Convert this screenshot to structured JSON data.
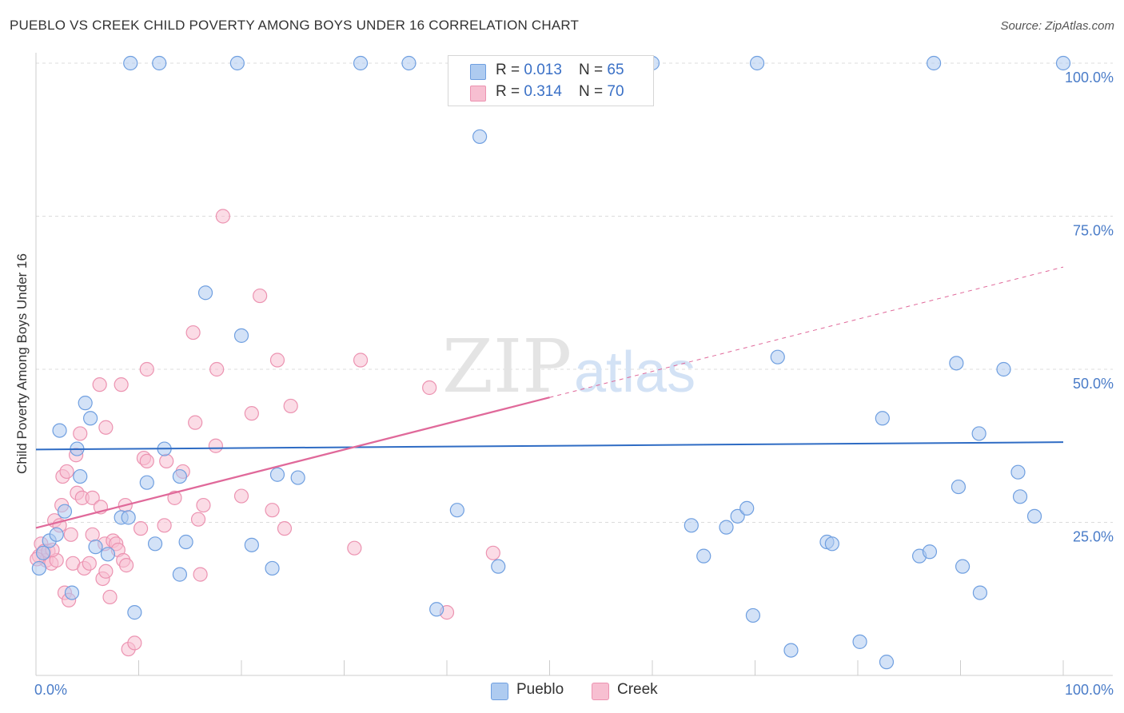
{
  "header": {
    "title": "PUEBLO VS CREEK CHILD POVERTY AMONG BOYS UNDER 16 CORRELATION CHART",
    "source": "Source: ZipAtlas.com"
  },
  "watermark": {
    "zip": "ZIP",
    "atlas": "atlas"
  },
  "legend": {
    "pueblo": {
      "r_label": "R = ",
      "r_value": "0.013",
      "n_label": "N = ",
      "n_value": "65"
    },
    "creek": {
      "r_label": "R = ",
      "r_value": "0.314",
      "n_label": "N = ",
      "n_value": "70"
    }
  },
  "bottom_legend": {
    "pueblo": "Pueblo",
    "creek": "Creek"
  },
  "colors": {
    "pueblo_fill": "#aecbf0",
    "pueblo_stroke": "#6f9fe0",
    "pueblo_line": "#2f6cc4",
    "creek_fill": "#f7bfd1",
    "creek_stroke": "#ec93b1",
    "creek_line": "#e0699a",
    "axis_label": "#4a7cc8",
    "grid": "#dcdcdc"
  },
  "chart_data": {
    "type": "scatter",
    "title": "PUEBLO VS CREEK CHILD POVERTY AMONG BOYS UNDER 16 CORRELATION CHART",
    "xlabel": "",
    "ylabel": "Child Poverty Among Boys Under 16",
    "xlim": [
      0,
      100
    ],
    "ylim": [
      0,
      100
    ],
    "x_tick_labels": [
      "0.0%",
      "100.0%"
    ],
    "y_tick_labels": [
      "25.0%",
      "50.0%",
      "75.0%",
      "100.0%"
    ],
    "y_ticks": [
      25,
      50,
      75,
      100
    ],
    "grid": "horizontal-dashed",
    "series": [
      {
        "name": "Pueblo",
        "r": 0.013,
        "n": 65,
        "trend": {
          "x0": 0,
          "y0": 36.9,
          "x1": 100,
          "y1": 38.1,
          "dashed_until": null
        },
        "points": [
          [
            0.3,
            17.5
          ],
          [
            0.7,
            20
          ],
          [
            1.3,
            22
          ],
          [
            2,
            23
          ],
          [
            2.3,
            40
          ],
          [
            2.8,
            26.8
          ],
          [
            3.5,
            13.5
          ],
          [
            4,
            37
          ],
          [
            4.3,
            32.5
          ],
          [
            4.8,
            44.5
          ],
          [
            5.3,
            42
          ],
          [
            5.8,
            21
          ],
          [
            7,
            19.8
          ],
          [
            8.3,
            25.8
          ],
          [
            9,
            25.8
          ],
          [
            9.6,
            10.3
          ],
          [
            10.8,
            31.5
          ],
          [
            11.6,
            21.5
          ],
          [
            12.5,
            37
          ],
          [
            14,
            32.5
          ],
          [
            14,
            16.5
          ],
          [
            14.6,
            21.8
          ],
          [
            16.5,
            62.5
          ],
          [
            20,
            55.5
          ],
          [
            21,
            21.3
          ],
          [
            23,
            17.5
          ],
          [
            23.5,
            32.8
          ],
          [
            25.5,
            32.3
          ],
          [
            9.2,
            100
          ],
          [
            12,
            100
          ],
          [
            19.6,
            100
          ],
          [
            31.6,
            100
          ],
          [
            36.3,
            100
          ],
          [
            60,
            100
          ],
          [
            70.2,
            100
          ],
          [
            87.4,
            100
          ],
          [
            100,
            100
          ],
          [
            43.2,
            88
          ],
          [
            39,
            10.8
          ],
          [
            41,
            27
          ],
          [
            45,
            17.8
          ],
          [
            63.8,
            24.5
          ],
          [
            65,
            19.5
          ],
          [
            67.2,
            24.2
          ],
          [
            68.3,
            26
          ],
          [
            69.2,
            27.3
          ],
          [
            69.8,
            9.8
          ],
          [
            72.2,
            52
          ],
          [
            73.5,
            4.1
          ],
          [
            77,
            21.8
          ],
          [
            77.5,
            21.5
          ],
          [
            80.2,
            5.5
          ],
          [
            82.4,
            42
          ],
          [
            82.8,
            2.2
          ],
          [
            86,
            19.5
          ],
          [
            87,
            20.2
          ],
          [
            89.6,
            51
          ],
          [
            89.8,
            30.8
          ],
          [
            90.2,
            17.8
          ],
          [
            91.8,
            39.5
          ],
          [
            91.9,
            13.5
          ],
          [
            94.2,
            50
          ],
          [
            95.6,
            33.2
          ],
          [
            95.8,
            29.2
          ],
          [
            97.2,
            26
          ]
        ]
      },
      {
        "name": "Creek",
        "r": 0.314,
        "n": 70,
        "trend": {
          "x0": 0,
          "y0": 24.1,
          "x1": 100,
          "y1": 66.7,
          "dashed_until": 50
        },
        "points": [
          [
            0.3,
            19.5
          ],
          [
            0.5,
            21.5
          ],
          [
            0.8,
            20.3
          ],
          [
            1,
            18.8
          ],
          [
            1.2,
            20.3
          ],
          [
            1.5,
            18.3
          ],
          [
            1.8,
            25.3
          ],
          [
            2,
            18.8
          ],
          [
            2.3,
            24.5
          ],
          [
            2.5,
            27.8
          ],
          [
            2.6,
            32.5
          ],
          [
            2.8,
            13.5
          ],
          [
            3,
            33.3
          ],
          [
            3.2,
            12.3
          ],
          [
            3.4,
            23
          ],
          [
            3.6,
            18.3
          ],
          [
            3.9,
            36
          ],
          [
            4,
            29.8
          ],
          [
            4.3,
            39.5
          ],
          [
            4.5,
            29
          ],
          [
            4.7,
            17.5
          ],
          [
            5.2,
            18.3
          ],
          [
            5.5,
            29
          ],
          [
            5.5,
            23
          ],
          [
            6.2,
            47.5
          ],
          [
            6.3,
            27.5
          ],
          [
            6.5,
            15.8
          ],
          [
            6.7,
            21.5
          ],
          [
            6.8,
            17
          ],
          [
            6.8,
            40.5
          ],
          [
            7.2,
            12.8
          ],
          [
            7.5,
            22
          ],
          [
            7.8,
            21.5
          ],
          [
            8,
            20.5
          ],
          [
            8.3,
            47.5
          ],
          [
            8.5,
            18.8
          ],
          [
            8.7,
            27.8
          ],
          [
            8.8,
            18
          ],
          [
            9,
            4.3
          ],
          [
            9.6,
            5.3
          ],
          [
            10.2,
            24
          ],
          [
            10.5,
            35.5
          ],
          [
            10.8,
            50
          ],
          [
            10.8,
            35
          ],
          [
            12.5,
            24.5
          ],
          [
            12.7,
            35
          ],
          [
            13.5,
            29
          ],
          [
            14.3,
            33.3
          ],
          [
            15.3,
            56
          ],
          [
            15.5,
            41.3
          ],
          [
            15.8,
            25.5
          ],
          [
            16,
            16.5
          ],
          [
            16.3,
            27.8
          ],
          [
            17.5,
            37.5
          ],
          [
            17.6,
            50
          ],
          [
            18.2,
            75
          ],
          [
            20,
            29.3
          ],
          [
            21,
            42.8
          ],
          [
            21.8,
            62
          ],
          [
            23,
            27
          ],
          [
            23.5,
            51.5
          ],
          [
            24.2,
            24
          ],
          [
            24.8,
            44
          ],
          [
            31,
            20.8
          ],
          [
            31.6,
            51.5
          ],
          [
            38.3,
            47
          ],
          [
            40,
            10.3
          ],
          [
            44.5,
            20
          ],
          [
            0.1,
            19
          ],
          [
            1.6,
            20.5
          ]
        ]
      }
    ]
  }
}
